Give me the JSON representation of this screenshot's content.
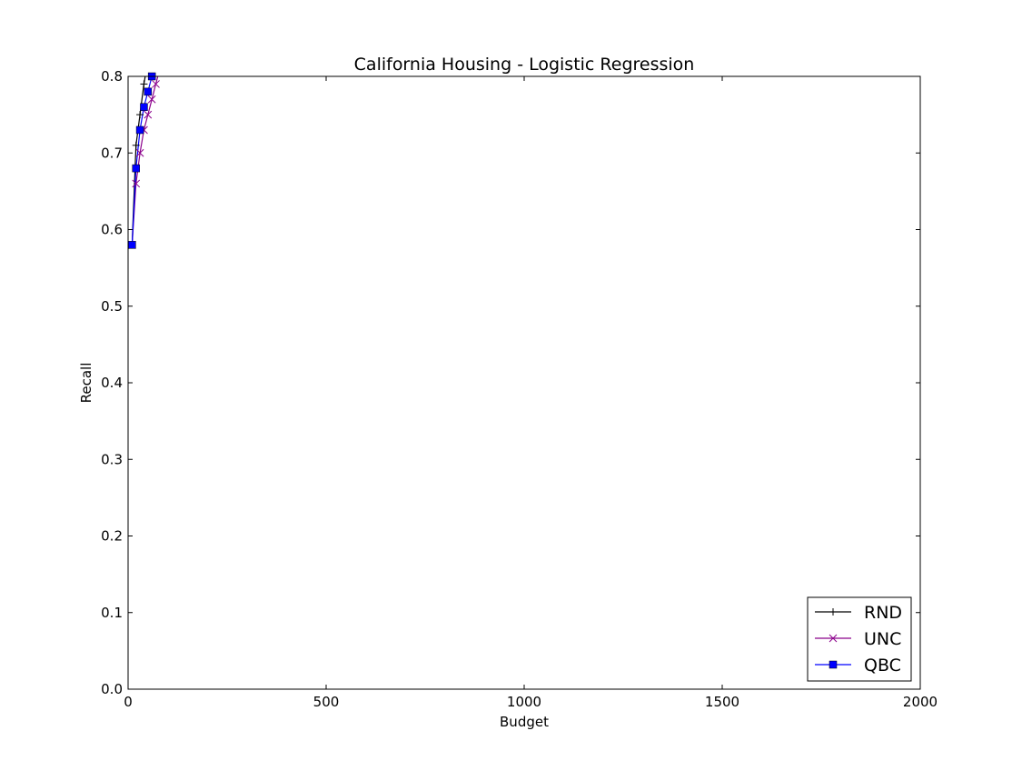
{
  "chart_data": {
    "type": "line",
    "title": "California Housing - Logistic Regression",
    "xlabel": "Budget",
    "ylabel": "Recall",
    "xlim": [
      0,
      2000
    ],
    "ylim": [
      0.0,
      0.8
    ],
    "xticks": [
      0,
      500,
      1000,
      1500,
      2000
    ],
    "xtick_labels": [
      "0",
      "500",
      "1000",
      "1500",
      "2000"
    ],
    "yticks": [
      0.0,
      0.1,
      0.2,
      0.3,
      0.4,
      0.5,
      0.6,
      0.7,
      0.8
    ],
    "ytick_labels": [
      "0.0",
      "0.1",
      "0.2",
      "0.3",
      "0.4",
      "0.5",
      "0.6",
      "0.7",
      "0.8"
    ],
    "grid": false,
    "legend_position": "lower-right",
    "series": [
      {
        "name": "RND",
        "color": "#000000",
        "marker": "plus",
        "x": [
          10,
          20,
          30,
          40,
          50
        ],
        "y": [
          0.58,
          0.71,
          0.75,
          0.79,
          0.82
        ]
      },
      {
        "name": "UNC",
        "color": "#8b008b",
        "marker": "x",
        "x": [
          10,
          20,
          30,
          40,
          50,
          60,
          70,
          80
        ],
        "y": [
          0.58,
          0.66,
          0.7,
          0.73,
          0.75,
          0.77,
          0.79,
          0.81
        ]
      },
      {
        "name": "QBC",
        "color": "#0000ff",
        "marker": "square",
        "x": [
          10,
          20,
          30,
          40,
          50,
          60,
          70
        ],
        "y": [
          0.58,
          0.68,
          0.73,
          0.76,
          0.78,
          0.8,
          0.82
        ]
      }
    ]
  }
}
